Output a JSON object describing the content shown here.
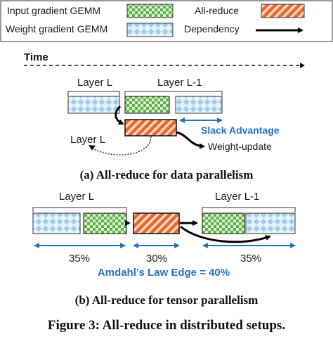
{
  "legend": {
    "input_grad": "Input gradient GEMM",
    "all_reduce": "All-reduce",
    "weight_grad": "Weight gradient GEMM",
    "dependency": "Dependency"
  },
  "time_label": "Time",
  "panel_a": {
    "layer_l": "Layer L",
    "layer_l_minus_1": "Layer L-1",
    "layer_l_lower": "Layer L",
    "slack": "Slack Advantage",
    "weight_update": "Weight-update",
    "caption": "(a) All-reduce for data parallelism"
  },
  "panel_b": {
    "layer_l": "Layer L",
    "layer_l_minus_1": "Layer L-1",
    "pct_left": "35%",
    "pct_mid": "30%",
    "pct_right": "35%",
    "amdahl": "Amdahl’s Law Edge = 40%",
    "caption": "(b) All-reduce for tensor parallelism"
  },
  "figure_caption": "Figure 3: All-reduce in distributed setups.",
  "colors": {
    "input_grad_green": "#5fb04a",
    "all_reduce_orange": "#e8692f",
    "weight_grad_blue": "#b9dcf2",
    "accent_blue": "#2a72b8",
    "black": "#000000"
  }
}
